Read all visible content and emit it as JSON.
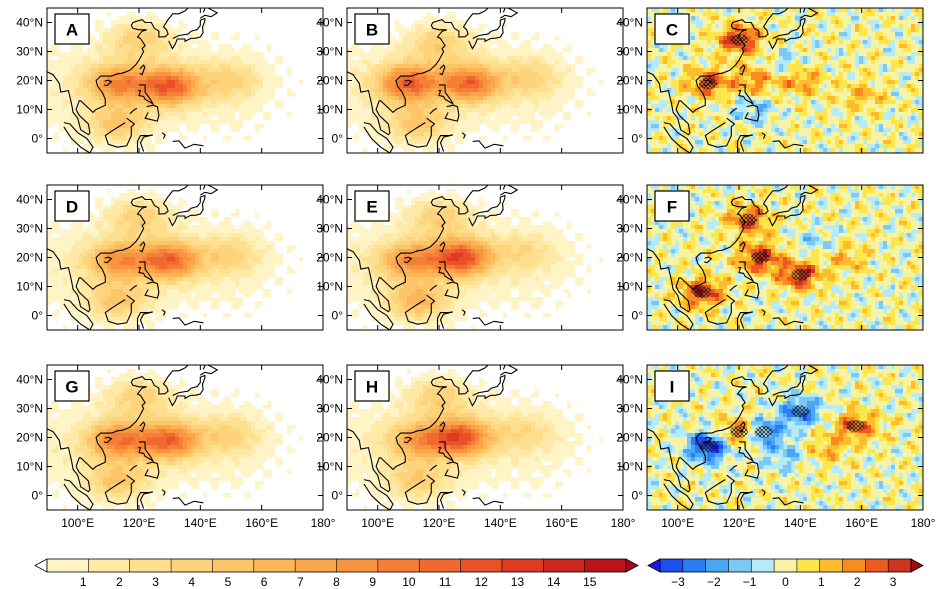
{
  "chart_data": {
    "type": "heatmap",
    "description_note": "3x3 grid of filled-contour maps over the western North Pacific; left two columns share a sequential colour scale, right column shows differences on a diverging scale with hatching for significance.",
    "x_range_deg": [
      90,
      180
    ],
    "y_range_deg": [
      -5,
      45
    ],
    "x_ticks": [
      "100°E",
      "120°E",
      "140°E",
      "160°E",
      "180°"
    ],
    "y_ticks": [
      "40°N",
      "30°N",
      "20°N",
      "10°N",
      "0°"
    ],
    "panels": [
      {
        "label": "A",
        "kind": "field",
        "centers": [
          [
            130,
            18,
            9.5
          ],
          [
            113,
            19,
            7.5
          ],
          [
            120,
            34,
            4.0
          ],
          [
            113,
            5,
            4.5
          ],
          [
            150,
            20,
            3.0
          ]
        ]
      },
      {
        "label": "B",
        "kind": "field",
        "centers": [
          [
            130,
            19,
            9.0
          ],
          [
            110,
            19,
            9.5
          ],
          [
            120,
            33,
            4.0
          ],
          [
            113,
            5,
            4.5
          ],
          [
            150,
            21,
            3.0
          ]
        ]
      },
      {
        "label": "C",
        "kind": "difference",
        "centers": [
          [
            120,
            34,
            2.5
          ],
          [
            110,
            19,
            2.0
          ],
          [
            125,
            20,
            1.5
          ],
          [
            140,
            20,
            1.5
          ],
          [
            160,
            15,
            1.0
          ],
          [
            125,
            10,
            -1.0
          ],
          [
            135,
            25,
            -0.8
          ]
        ]
      },
      {
        "label": "D",
        "kind": "field",
        "centers": [
          [
            130,
            19,
            9.0
          ],
          [
            113,
            19,
            7.0
          ],
          [
            120,
            34,
            4.0
          ],
          [
            113,
            5,
            4.5
          ],
          [
            150,
            21,
            3.0
          ]
        ]
      },
      {
        "label": "E",
        "kind": "field",
        "centers": [
          [
            127,
            20,
            10.5
          ],
          [
            110,
            19,
            7.0
          ],
          [
            120,
            34,
            4.0
          ],
          [
            113,
            5,
            5.5
          ],
          [
            148,
            22,
            2.5
          ]
        ]
      },
      {
        "label": "F",
        "kind": "difference",
        "centers": [
          [
            127,
            20,
            2.5
          ],
          [
            140,
            14,
            2.5
          ],
          [
            108,
            8,
            2.5
          ],
          [
            123,
            33,
            2.0
          ],
          [
            155,
            20,
            1.0
          ],
          [
            145,
            25,
            -0.8
          ]
        ]
      },
      {
        "label": "G",
        "kind": "field",
        "centers": [
          [
            130,
            19,
            9.0
          ],
          [
            113,
            19,
            8.0
          ],
          [
            120,
            34,
            4.0
          ],
          [
            113,
            5,
            4.5
          ],
          [
            150,
            21,
            3.0
          ]
        ]
      },
      {
        "label": "H",
        "kind": "field",
        "centers": [
          [
            127,
            20,
            10.0
          ],
          [
            113,
            19,
            6.0
          ],
          [
            120,
            34,
            4.0
          ],
          [
            113,
            5,
            4.0
          ],
          [
            148,
            22,
            2.5
          ]
        ]
      },
      {
        "label": "I",
        "kind": "difference",
        "centers": [
          [
            110,
            17,
            -3.0
          ],
          [
            128,
            22,
            -2.0
          ],
          [
            140,
            29,
            -2.0
          ],
          [
            120,
            22,
            2.0
          ],
          [
            158,
            24,
            2.0
          ],
          [
            148,
            16,
            1.0
          ],
          [
            135,
            14,
            -1.0
          ]
        ]
      }
    ],
    "colorbars": [
      {
        "name": "field",
        "min": 0,
        "max": 16,
        "labels": [
          "1",
          "2",
          "3",
          "4",
          "5",
          "6",
          "7",
          "8",
          "9",
          "10",
          "11",
          "12",
          "13",
          "14",
          "15"
        ]
      },
      {
        "name": "difference",
        "min": -3.5,
        "max": 3.5,
        "labels": [
          "−3",
          "−2",
          "−1",
          "0",
          "1",
          "2",
          "3"
        ]
      }
    ]
  },
  "colors": {
    "field": [
      "#ffffff",
      "#fff4c6",
      "#fee9a6",
      "#fedf8e",
      "#fdd37c",
      "#fdc568",
      "#fcb657",
      "#fba64a",
      "#f99441",
      "#f67f38",
      "#f16930",
      "#e95228",
      "#de3b22",
      "#cf2620",
      "#bb141d",
      "#a50a1d"
    ],
    "diff": [
      "#1c1ce6",
      "#1f4ef0",
      "#2a7ef2",
      "#4aa6f4",
      "#7cc9f7",
      "#b5eaf8",
      "#f7f3a4",
      "#fde64c",
      "#fdbb2d",
      "#f98b20",
      "#ec5a1e",
      "#d2331d",
      "#9e0d1b"
    ],
    "coast": "#000000"
  }
}
